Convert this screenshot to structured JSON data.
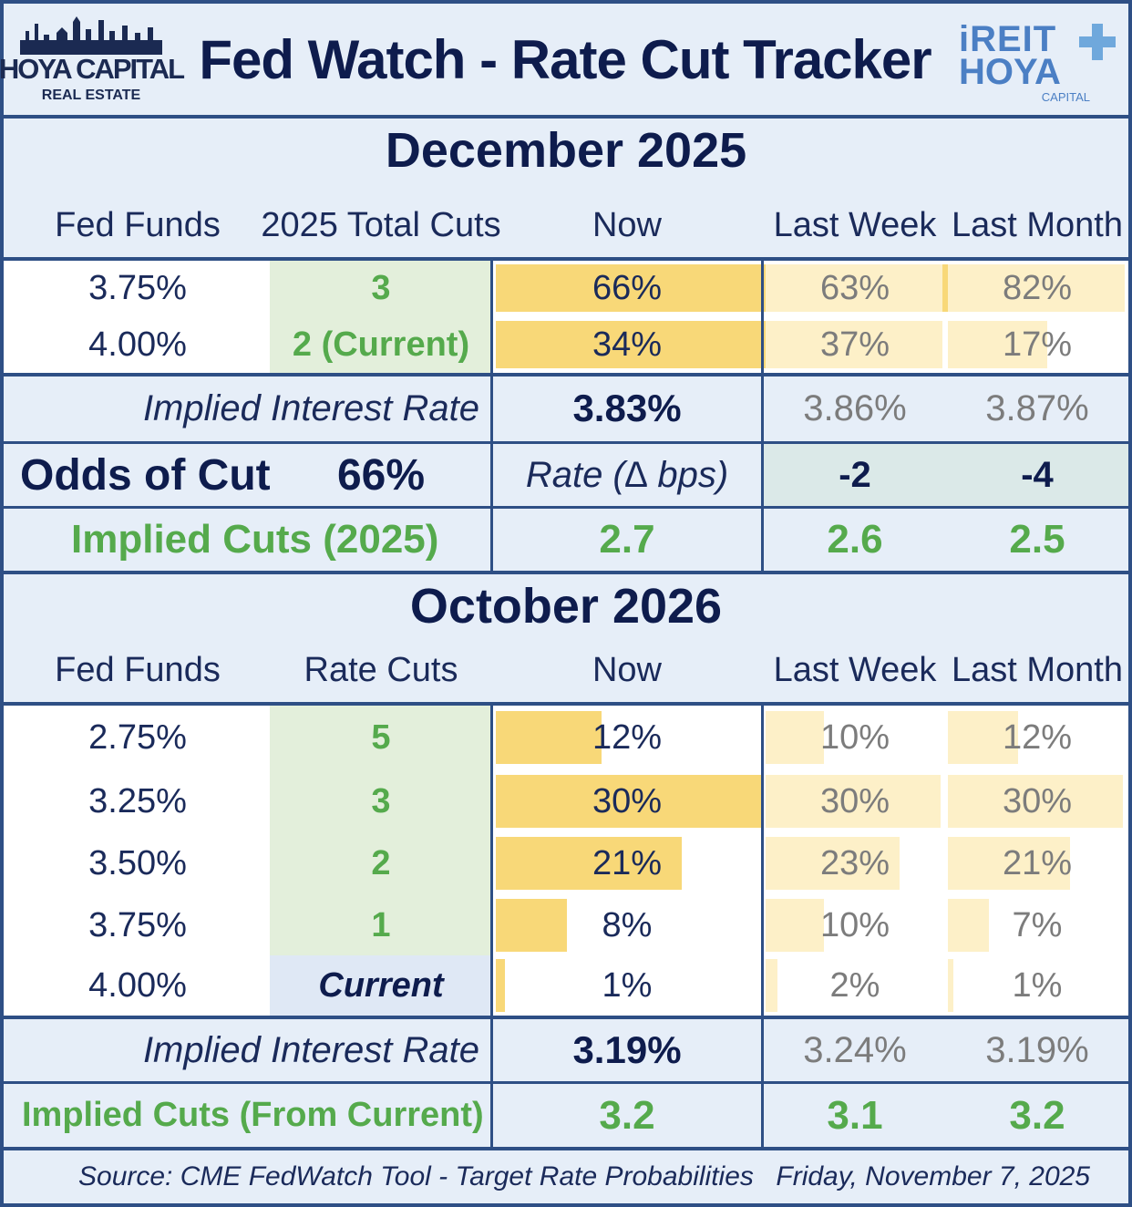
{
  "header": {
    "title": "Fed Watch - Rate Cut Tracker",
    "logo_left": {
      "line1": "HOYA CAPITAL",
      "line2": "REAL ESTATE"
    },
    "logo_right": {
      "line1": "iREIT",
      "line2": "HOYA",
      "line3": "CAPITAL"
    }
  },
  "colors": {
    "navy": "#0e1c4d",
    "green": "#55aa4c",
    "bar_now": "#f8d878",
    "bar_old": "#fdf0c8",
    "panel": "#e6eef8",
    "cut_bg": "#e3efdb"
  },
  "chart_data": [
    {
      "type": "table",
      "title": "December 2025",
      "columns": [
        "Fed Funds",
        "2025 Total Cuts",
        "Now",
        "Last Week",
        "Last Month"
      ],
      "rows": [
        {
          "rate": "3.75%",
          "cuts": "3",
          "now": 66,
          "last_week": 63,
          "last_month": 82
        },
        {
          "rate": "4.00%",
          "cuts": "2 (Current)",
          "now": 34,
          "last_week": 37,
          "last_month": 17
        }
      ],
      "implied_rate": {
        "label": "Implied Interest Rate",
        "now": "3.83%",
        "last_week": "3.86%",
        "last_month": "3.87%"
      },
      "odds": {
        "label": "Odds of Cut",
        "value": "66%",
        "delta_label": "Rate (∆ bps)",
        "last_week": "-2",
        "last_month": "-4"
      },
      "implied_cuts": {
        "label": "Implied Cuts (2025)",
        "now": "2.7",
        "last_week": "2.6",
        "last_month": "2.5"
      }
    },
    {
      "type": "table",
      "title": "October 2026",
      "columns": [
        "Fed Funds",
        "Rate Cuts",
        "Now",
        "Last Week",
        "Last Month"
      ],
      "rows": [
        {
          "rate": "2.75%",
          "cuts": "5",
          "now": 12,
          "last_week": 10,
          "last_month": 12
        },
        {
          "rate": "3.25%",
          "cuts": "3",
          "now": 30,
          "last_week": 30,
          "last_month": 30
        },
        {
          "rate": "3.50%",
          "cuts": "2",
          "now": 21,
          "last_week": 23,
          "last_month": 21
        },
        {
          "rate": "3.75%",
          "cuts": "1",
          "now": 8,
          "last_week": 10,
          "last_month": 7
        },
        {
          "rate": "4.00%",
          "cuts": "Current",
          "now": 1,
          "last_week": 2,
          "last_month": 1
        }
      ],
      "implied_rate": {
        "label": "Implied Interest Rate",
        "now": "3.19%",
        "last_week": "3.24%",
        "last_month": "3.19%"
      },
      "implied_cuts": {
        "label": "Implied Cuts (From Current)",
        "now": "3.2",
        "last_week": "3.1",
        "last_month": "3.2"
      }
    }
  ],
  "footer": {
    "source": "Source: CME FedWatch Tool - Target Rate Probabilities",
    "date": "Friday, November 7, 2025"
  }
}
